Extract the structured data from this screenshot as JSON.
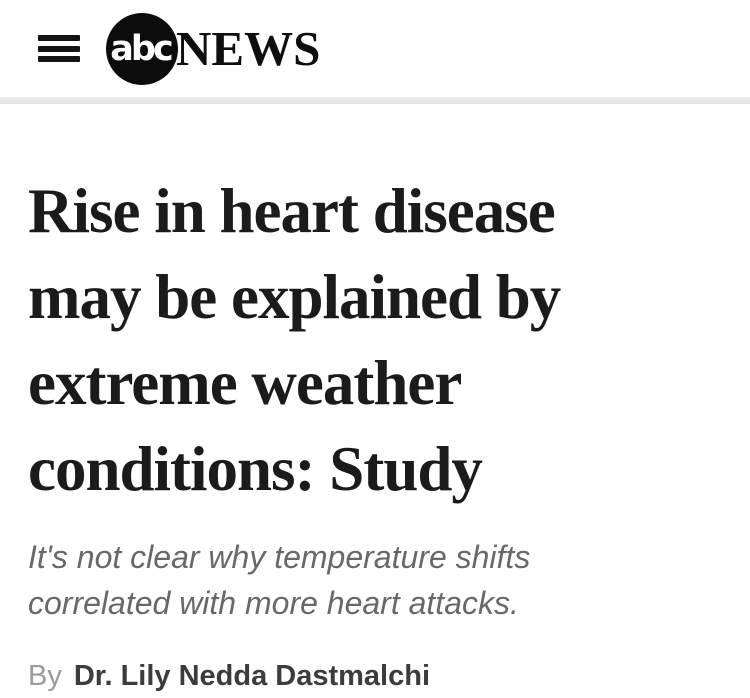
{
  "header": {
    "menu_icon": "hamburger-menu",
    "logo": {
      "circle_text": "abc",
      "wordmark": "NEWS"
    }
  },
  "article": {
    "headline_lines": [
      "Rise in heart disease",
      "may be explained by",
      "extreme weather",
      "conditions: Study"
    ],
    "subhead_lines": [
      "It's not clear why temperature shifts",
      "correlated with more heart attacks."
    ],
    "byline": {
      "prefix": "By",
      "author": "Dr. Lily Nedda Dastmalchi"
    }
  },
  "colors": {
    "headline": "#1b1b1b",
    "subhead": "#686868",
    "byline_prefix": "#9b9b9b",
    "byline_author": "#3c3c3c",
    "logo_circle": "#0c0c0c",
    "divider": "#e5e5e5",
    "background": "#ffffff"
  }
}
